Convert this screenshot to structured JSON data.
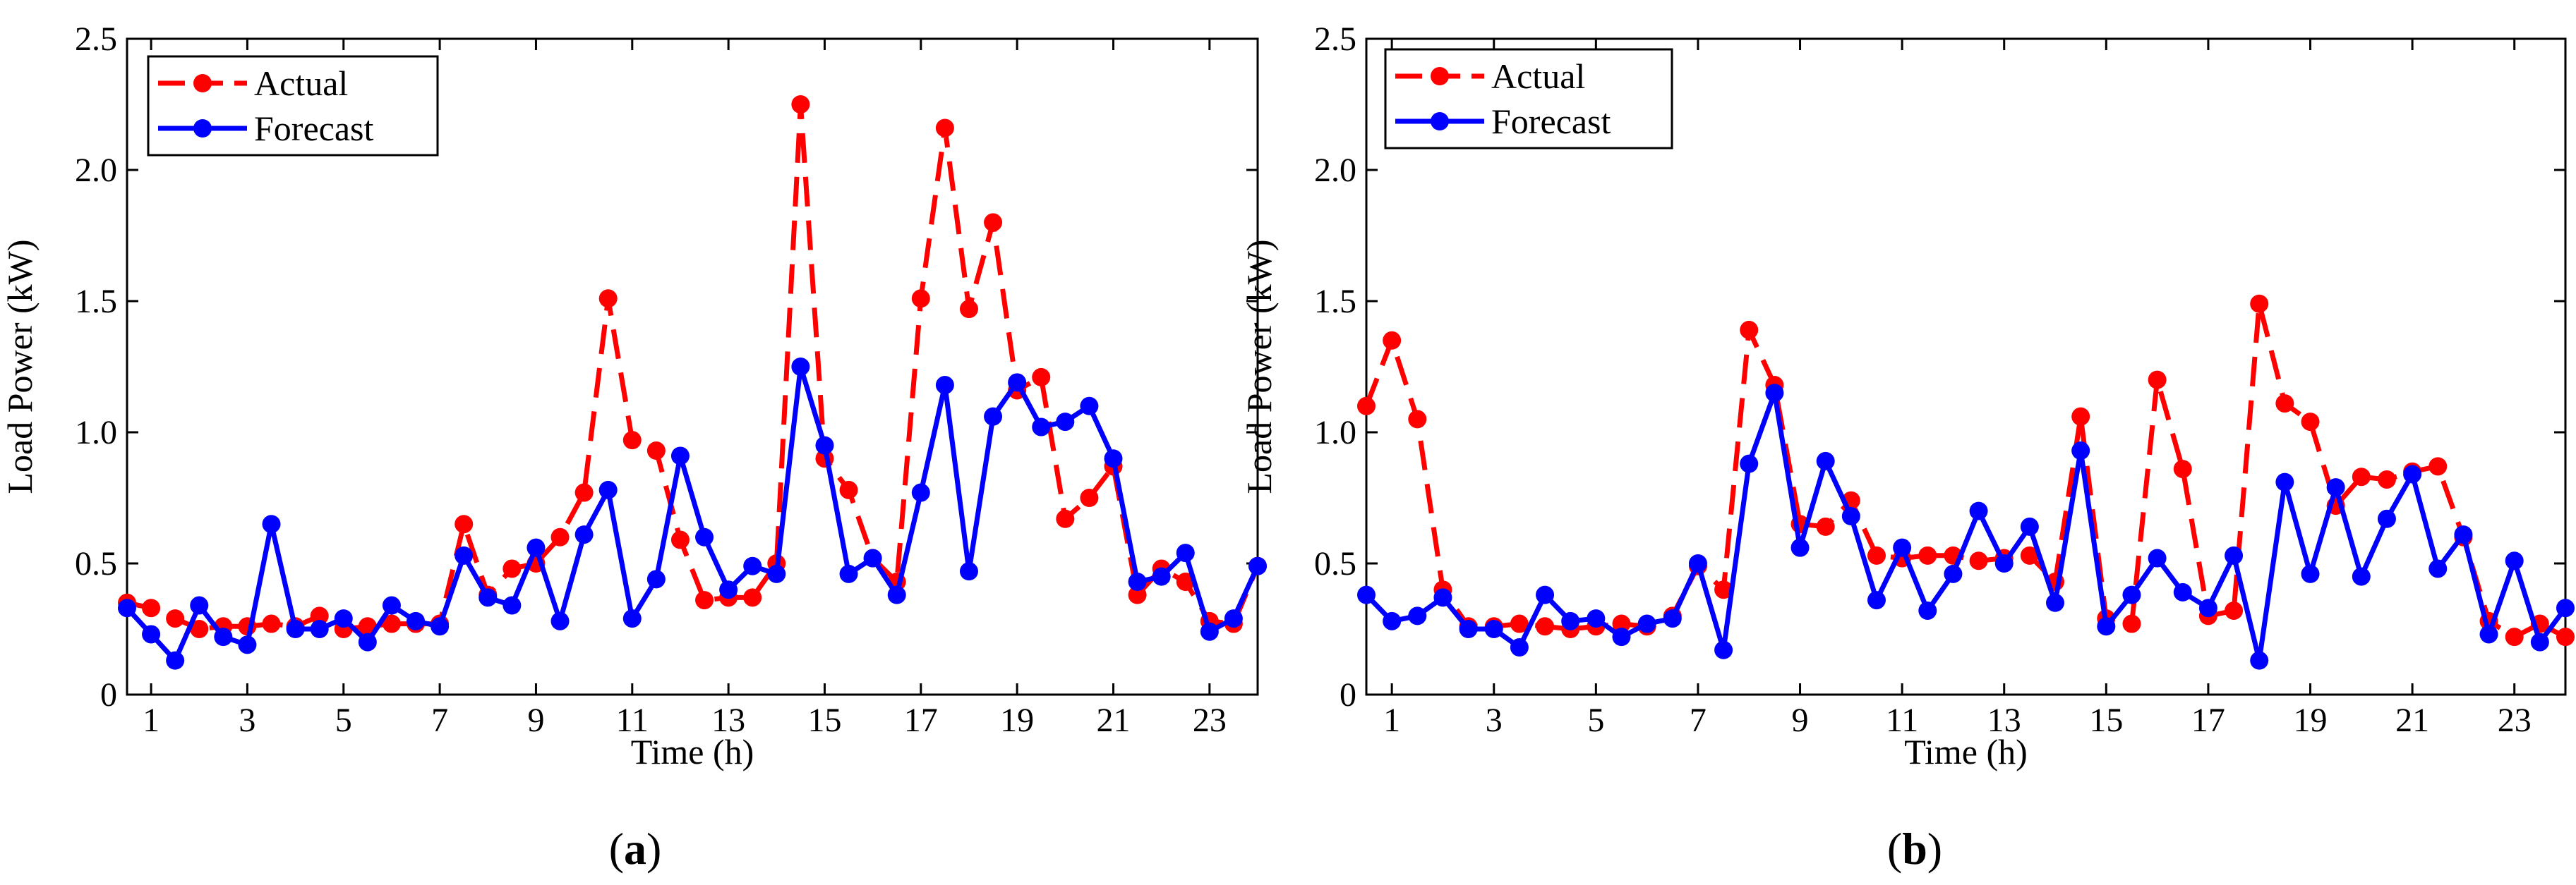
{
  "chart_data": [
    {
      "type": "line",
      "panel_label": "a",
      "xlabel": "Time (h)",
      "ylabel": "Load Power (kW)",
      "xlim": [
        0.5,
        24
      ],
      "ylim": [
        0,
        2.5
      ],
      "x_ticks": [
        1,
        3,
        5,
        7,
        9,
        11,
        13,
        15,
        17,
        19,
        21,
        23
      ],
      "y_ticks": [
        0,
        0.5,
        1.0,
        1.5,
        2.0,
        2.5
      ],
      "y_tick_labels": [
        "0",
        "0.5",
        "1.0",
        "1.5",
        "2.0",
        "2.5"
      ],
      "legend": [
        "Actual",
        "Forecast"
      ],
      "x": [
        0.5,
        1,
        1.5,
        2,
        2.5,
        3,
        3.5,
        4,
        4.5,
        5,
        5.5,
        6,
        6.5,
        7,
        7.5,
        8,
        8.5,
        9,
        9.5,
        10,
        10.5,
        11,
        11.5,
        12,
        12.5,
        13,
        13.5,
        14,
        14.5,
        15,
        15.5,
        16,
        16.5,
        17,
        17.5,
        18,
        18.5,
        19,
        19.5,
        20,
        20.5,
        21,
        21.5,
        22,
        22.5,
        23,
        23.5,
        24
      ],
      "series": [
        {
          "name": "Actual",
          "color": "#ff0000",
          "dash": true,
          "values": [
            0.35,
            0.33,
            0.29,
            0.25,
            0.26,
            0.26,
            0.27,
            0.26,
            0.3,
            0.25,
            0.26,
            0.27,
            0.27,
            0.27,
            0.65,
            0.38,
            0.48,
            0.5,
            0.6,
            0.77,
            1.51,
            0.97,
            0.93,
            0.59,
            0.36,
            0.37,
            0.37,
            0.5,
            2.25,
            0.9,
            0.78,
            0.52,
            0.43,
            1.51,
            2.16,
            1.47,
            1.8,
            1.16,
            1.21,
            0.67,
            0.75,
            0.87,
            0.38,
            0.48,
            0.43,
            0.28,
            0.27,
            0.49
          ]
        },
        {
          "name": "Forecast",
          "color": "#0000ff",
          "dash": false,
          "values": [
            0.33,
            0.23,
            0.13,
            0.34,
            0.22,
            0.19,
            0.65,
            0.25,
            0.25,
            0.29,
            0.2,
            0.34,
            0.28,
            0.26,
            0.53,
            0.37,
            0.34,
            0.56,
            0.28,
            0.61,
            0.78,
            0.29,
            0.44,
            0.91,
            0.6,
            0.4,
            0.49,
            0.46,
            1.25,
            0.95,
            0.46,
            0.52,
            0.38,
            0.77,
            1.18,
            0.47,
            1.06,
            1.19,
            1.02,
            1.04,
            1.1,
            0.9,
            0.43,
            0.45,
            0.54,
            0.24,
            0.29,
            0.49
          ]
        }
      ]
    },
    {
      "type": "line",
      "panel_label": "b",
      "xlabel": "Time (h)",
      "ylabel": "Load Power (kW)",
      "xlim": [
        0.5,
        24
      ],
      "ylim": [
        0,
        2.5
      ],
      "x_ticks": [
        1,
        3,
        5,
        7,
        9,
        11,
        13,
        15,
        17,
        19,
        21,
        23
      ],
      "y_ticks": [
        0,
        0.5,
        1.0,
        1.5,
        2.0,
        2.5
      ],
      "y_tick_labels": [
        "0",
        "0.5",
        "1.0",
        "1.5",
        "2.0",
        "2.5"
      ],
      "legend": [
        "Actual",
        "Forecast"
      ],
      "x": [
        0.5,
        1,
        1.5,
        2,
        2.5,
        3,
        3.5,
        4,
        4.5,
        5,
        5.5,
        6,
        6.5,
        7,
        7.5,
        8,
        8.5,
        9,
        9.5,
        10,
        10.5,
        11,
        11.5,
        12,
        12.5,
        13,
        13.5,
        14,
        14.5,
        15,
        15.5,
        16,
        16.5,
        17,
        17.5,
        18,
        18.5,
        19,
        19.5,
        20,
        20.5,
        21,
        21.5,
        22,
        22.5,
        23,
        23.5,
        24
      ],
      "series": [
        {
          "name": "Actual",
          "color": "#ff0000",
          "dash": true,
          "values": [
            1.1,
            1.35,
            1.05,
            0.4,
            0.26,
            0.26,
            0.27,
            0.26,
            0.25,
            0.26,
            0.27,
            0.26,
            0.3,
            0.49,
            0.4,
            1.39,
            1.18,
            0.65,
            0.64,
            0.74,
            0.53,
            0.52,
            0.53,
            0.53,
            0.51,
            0.52,
            0.53,
            0.43,
            1.06,
            0.29,
            0.27,
            1.2,
            0.86,
            0.3,
            0.32,
            1.49,
            1.11,
            1.04,
            0.72,
            0.83,
            0.82,
            0.85,
            0.87,
            0.6,
            0.28,
            0.22,
            0.27,
            0.22
          ]
        },
        {
          "name": "Forecast",
          "color": "#0000ff",
          "dash": false,
          "values": [
            0.38,
            0.28,
            0.3,
            0.37,
            0.25,
            0.25,
            0.18,
            0.38,
            0.28,
            0.29,
            0.22,
            0.27,
            0.29,
            0.5,
            0.17,
            0.88,
            1.15,
            0.56,
            0.89,
            0.68,
            0.36,
            0.56,
            0.32,
            0.46,
            0.7,
            0.5,
            0.64,
            0.35,
            0.93,
            0.26,
            0.38,
            0.52,
            0.39,
            0.33,
            0.53,
            0.13,
            0.81,
            0.46,
            0.79,
            0.45,
            0.67,
            0.84,
            0.48,
            0.61,
            0.23,
            0.51,
            0.2,
            0.33
          ]
        }
      ]
    }
  ]
}
